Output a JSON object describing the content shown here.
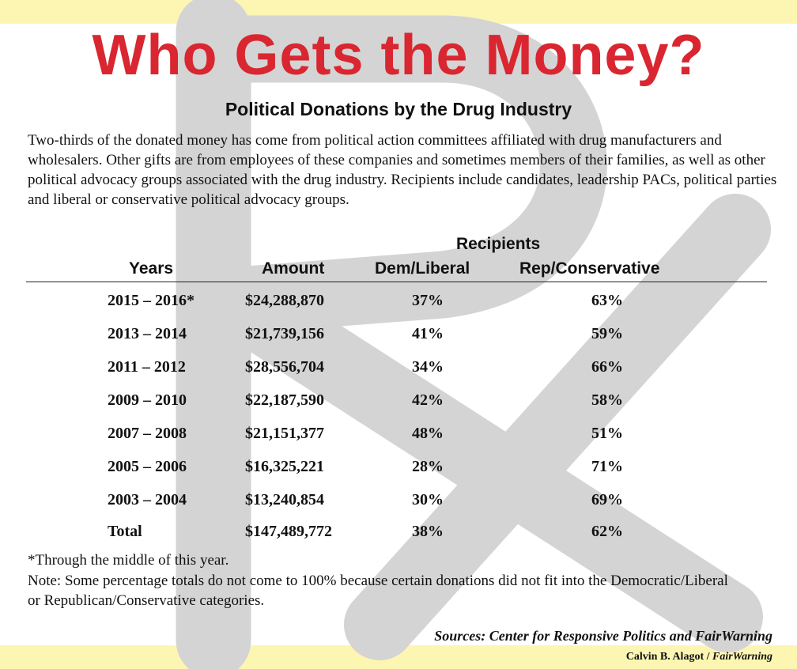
{
  "header": {
    "title": "Who Gets the Money?",
    "subtitle": "Political Donations by the Drug Industry"
  },
  "intro": "Two-thirds of the donated money has come from political action committees affiliated with drug manufacturers and wholesalers. Other gifts are from employees of these companies and sometimes members of their families, as well as other political advocacy groups associated with the drug industry. Recipients include candidates, leadership PACs, political parties and liberal or conservative political advocacy groups.",
  "chart_data": {
    "type": "table",
    "group_header": "Recipients",
    "columns": [
      "Years",
      "Amount",
      "Dem/Liberal",
      "Rep/Conservative"
    ],
    "rows": [
      [
        "2015 – 2016*",
        "$24,288,870",
        "37%",
        "63%"
      ],
      [
        "2013 – 2014",
        "$21,739,156",
        "41%",
        "59%"
      ],
      [
        "2011 – 2012",
        "$28,556,704",
        "34%",
        "66%"
      ],
      [
        "2009 – 2010",
        "$22,187,590",
        "42%",
        "58%"
      ],
      [
        "2007 – 2008",
        "$21,151,377",
        "48%",
        "51%"
      ],
      [
        "2005 – 2006",
        "$16,325,221",
        "28%",
        "71%"
      ],
      [
        "2003 – 2004",
        "$13,240,854",
        "30%",
        "69%"
      ]
    ],
    "total": [
      "Total",
      "$147,489,772",
      "38%",
      "62%"
    ]
  },
  "footnotes": {
    "asterisk": "*Through the middle of this year.",
    "note": "Note: Some percentage totals do not come to 100% because certain donations did not fit into the Democratic/Liberal or Republican/Conservative categories."
  },
  "sources": "Sources: Center for Responsive Politics and FairWarning",
  "credit": {
    "author": "Calvin B. Alagot / ",
    "outlet": "FairWarning"
  },
  "colors": {
    "title": "#d92630",
    "band": "#fdf6b3",
    "watermark": "#d4d4d4"
  },
  "watermark_icon": "rx-prescription-symbol-icon"
}
